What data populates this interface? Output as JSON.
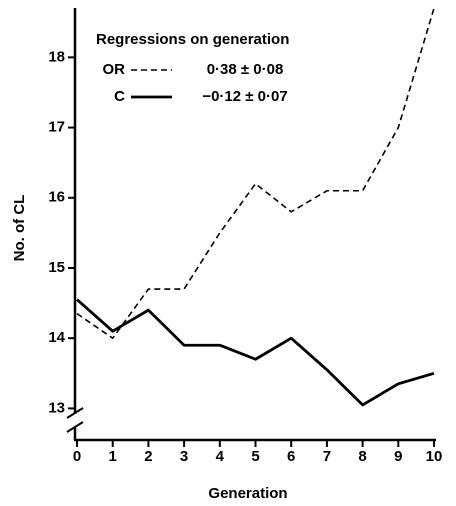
{
  "chart_data": {
    "type": "line",
    "legend_title": "Regressions on generation",
    "x_label": "Generation",
    "y_label": "No. of CL",
    "x": [
      0,
      1,
      2,
      3,
      4,
      5,
      6,
      7,
      8,
      9,
      10
    ],
    "series": [
      {
        "name": "OR",
        "regression": "0·38 ± 0·08",
        "line_style": "dashed",
        "color": "#000000",
        "values": [
          14.35,
          14.0,
          14.7,
          14.7,
          15.5,
          16.2,
          15.8,
          16.1,
          16.1,
          17.0,
          18.7
        ]
      },
      {
        "name": "C",
        "regression": "−0·12 ± 0·07",
        "line_style": "solid",
        "color": "#000000",
        "values": [
          14.55,
          14.1,
          14.4,
          13.9,
          13.9,
          13.7,
          14.0,
          13.55,
          13.05,
          13.35,
          13.5
        ]
      }
    ],
    "xlim": [
      0,
      10
    ],
    "xticks": [
      0,
      1,
      2,
      3,
      4,
      5,
      6,
      7,
      8,
      9,
      10
    ],
    "ylim": [
      12.55,
      18.76
    ],
    "yticks": [
      13,
      14,
      15,
      16,
      17,
      18
    ],
    "axis_break": true
  }
}
